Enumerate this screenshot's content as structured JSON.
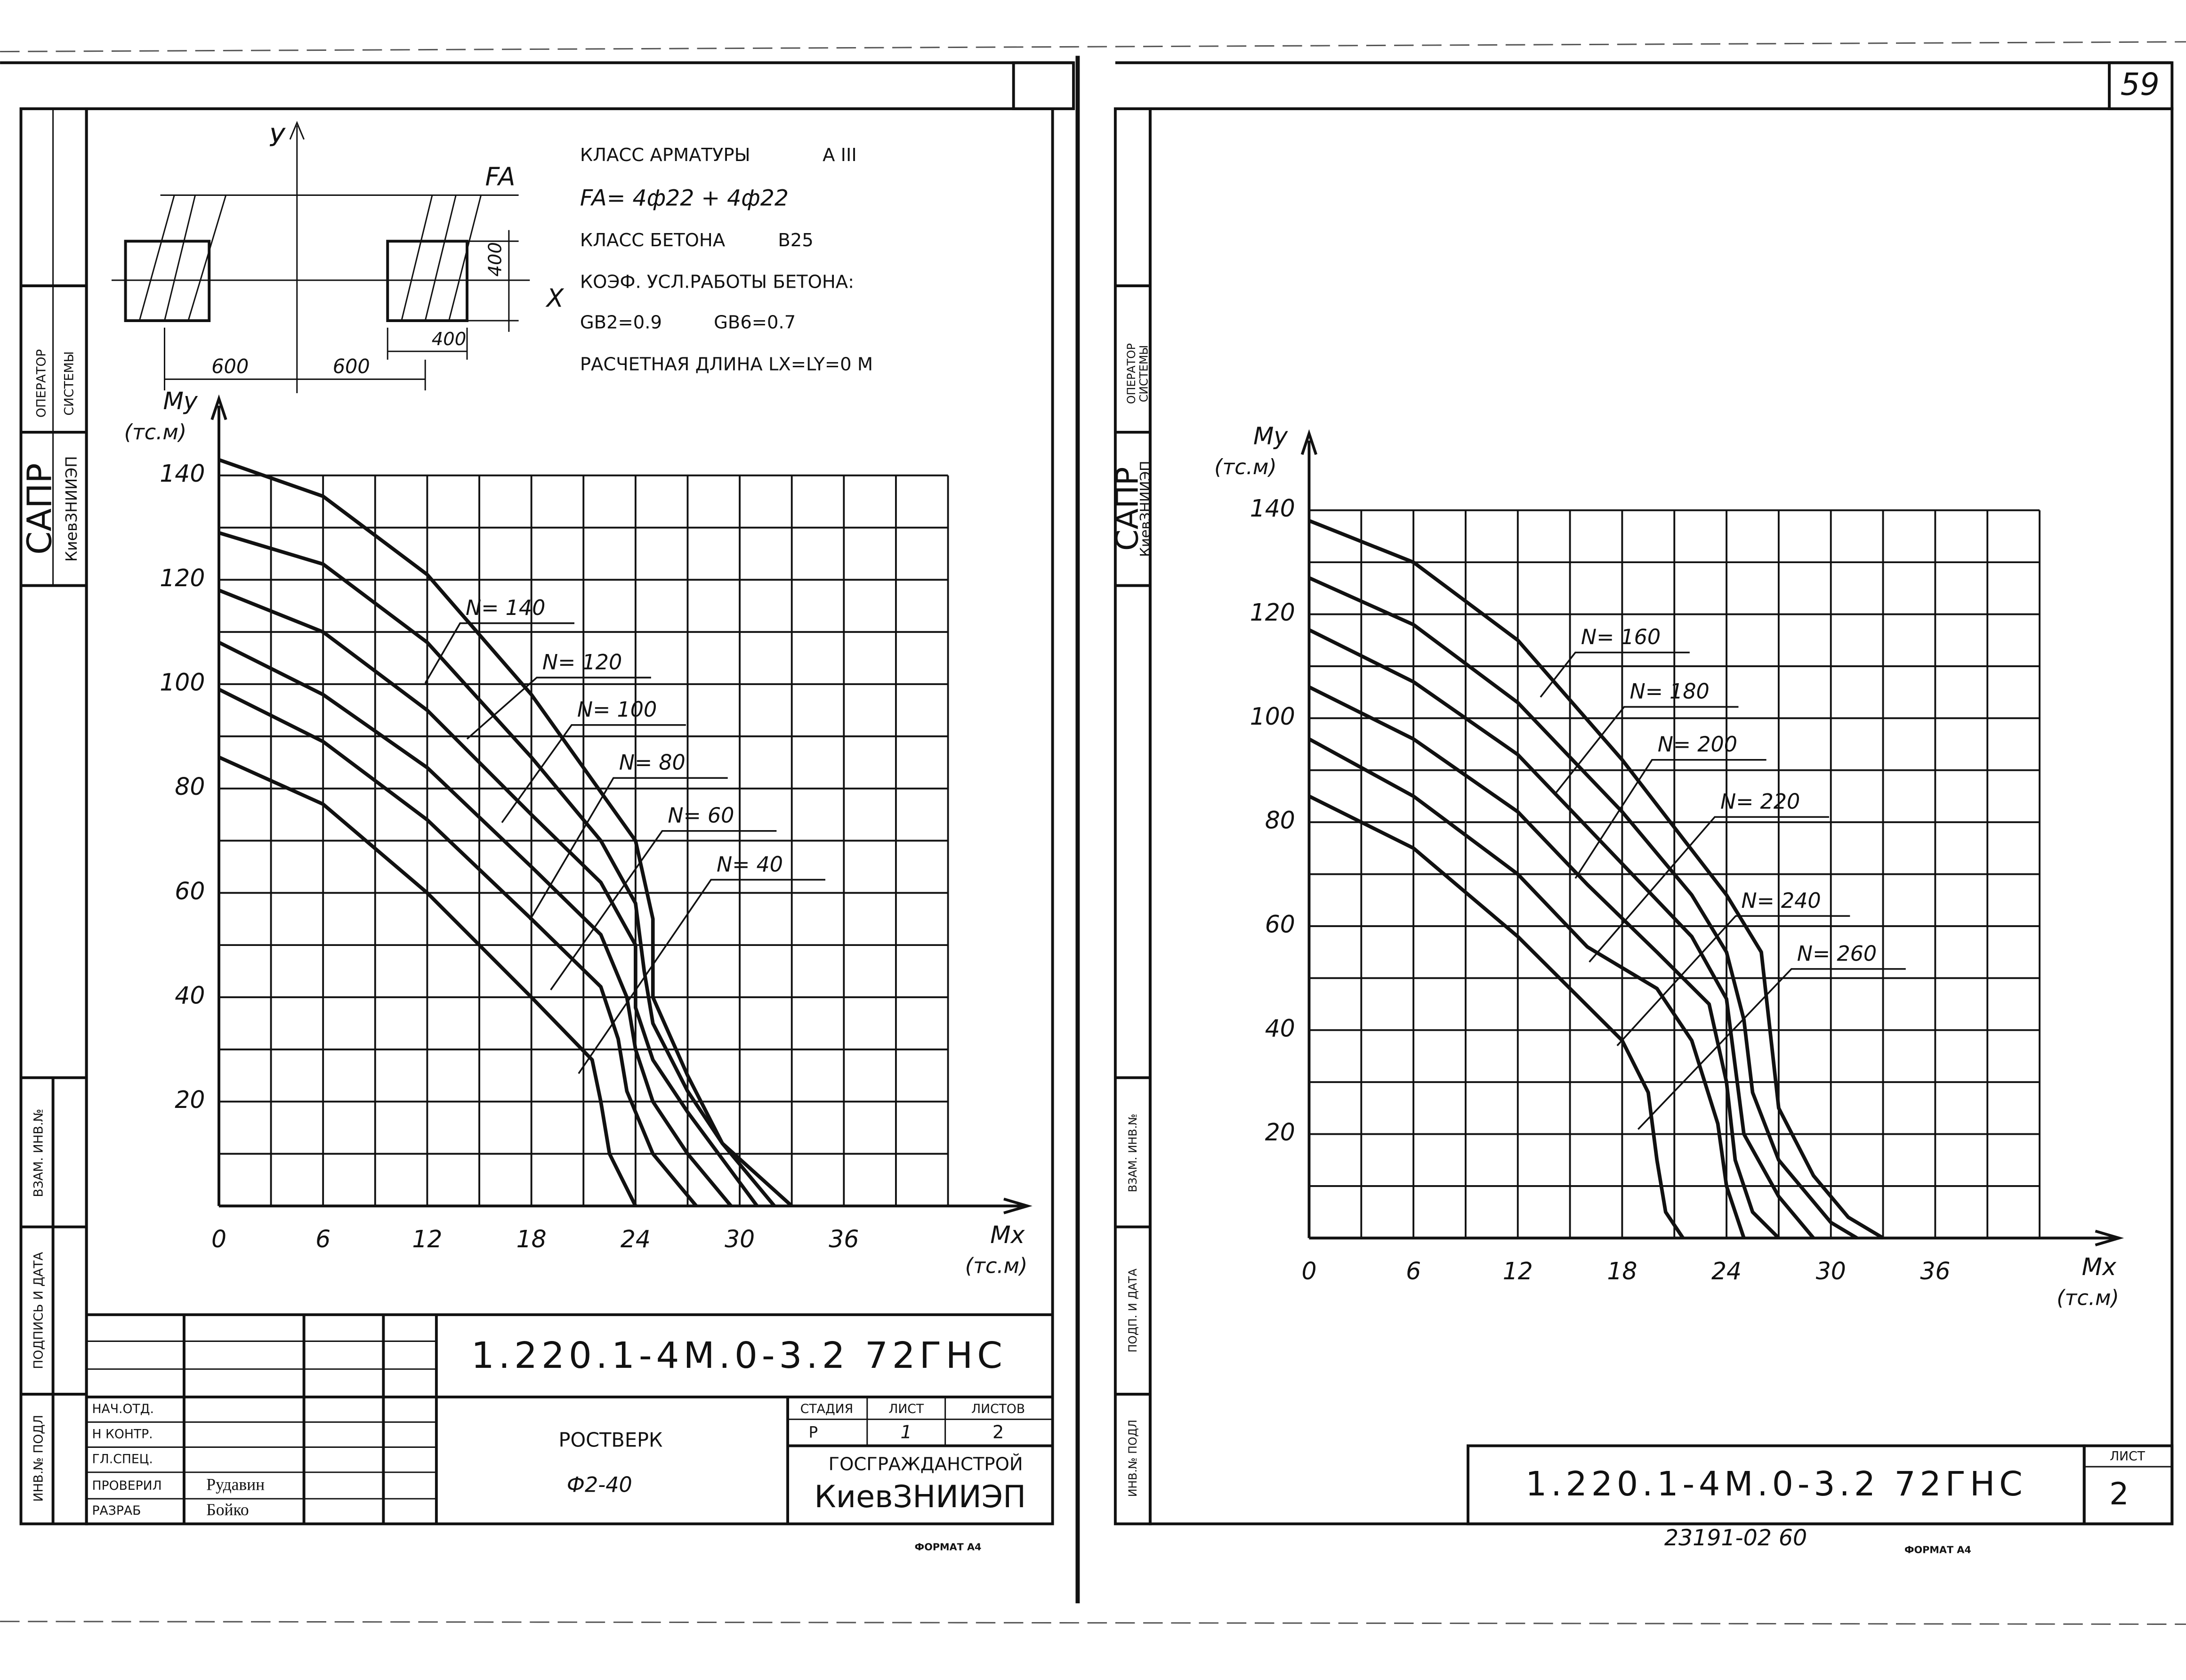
{
  "chart_data": [
    {
      "type": "line",
      "xlabel": [
        "Mx",
        "(тс.м)"
      ],
      "ylabel": [
        "My",
        "(тс.м)"
      ],
      "xlim": [
        0,
        42
      ],
      "ylim": [
        0,
        140
      ],
      "xticks": [
        0,
        6,
        12,
        18,
        24,
        30,
        36
      ],
      "yticks": [
        20,
        40,
        60,
        80,
        100,
        120,
        140
      ],
      "xgrid": [
        0,
        3,
        6,
        9,
        12,
        15,
        18,
        21,
        24,
        27,
        30,
        33,
        36,
        39,
        42
      ],
      "ygrid": [
        0,
        10,
        20,
        30,
        40,
        50,
        60,
        70,
        80,
        90,
        100,
        110,
        120,
        130,
        140
      ],
      "grid": true,
      "series": [
        {
          "name": "N= 140",
          "color": "#111111",
          "x": [
            0,
            6,
            12,
            18,
            24,
            25,
            25,
            27,
            29,
            32,
            33
          ],
          "values": [
            143,
            136,
            121,
            98,
            70,
            55,
            40,
            25,
            12,
            3,
            0
          ]
        },
        {
          "name": "N= 120",
          "color": "#111111",
          "x": [
            0,
            6,
            12,
            18,
            22,
            24,
            24.5,
            25,
            27,
            29,
            31,
            32
          ],
          "values": [
            129,
            123,
            108,
            86,
            70,
            58,
            45,
            35,
            22,
            12,
            4,
            0
          ]
        },
        {
          "name": "N= 100",
          "color": "#111111",
          "x": [
            0,
            6,
            12,
            18,
            22,
            24,
            24,
            25,
            27,
            29,
            31
          ],
          "values": [
            118,
            110,
            95,
            75,
            62,
            50,
            38,
            28,
            18,
            9,
            0
          ]
        },
        {
          "name": "N= 80",
          "color": "#111111",
          "x": [
            0,
            6,
            12,
            18,
            22,
            23.5,
            24,
            25,
            27,
            29.5
          ],
          "values": [
            108,
            98,
            84,
            65,
            52,
            40,
            30,
            20,
            10,
            0
          ]
        },
        {
          "name": "N= 60",
          "color": "#111111",
          "x": [
            0,
            6,
            12,
            18,
            22,
            23,
            23.5,
            25,
            27.5
          ],
          "values": [
            99,
            89,
            74,
            55,
            42,
            32,
            22,
            10,
            0
          ]
        },
        {
          "name": "N= 40",
          "color": "#111111",
          "x": [
            0,
            6,
            12,
            18,
            21.5,
            22,
            22.5,
            24
          ],
          "values": [
            86,
            77,
            60,
            40,
            28,
            20,
            10,
            0
          ]
        }
      ]
    },
    {
      "type": "line",
      "xlabel": [
        "Mx",
        "(тс.м)"
      ],
      "ylabel": [
        "My",
        "(тс.м)"
      ],
      "xlim": [
        0,
        42
      ],
      "ylim": [
        0,
        140
      ],
      "xticks": [
        0,
        6,
        12,
        18,
        24,
        30,
        36
      ],
      "yticks": [
        20,
        40,
        60,
        80,
        100,
        120,
        140
      ],
      "xgrid": [
        0,
        3,
        6,
        9,
        12,
        15,
        18,
        21,
        24,
        27,
        30,
        33,
        36,
        39,
        42
      ],
      "ygrid": [
        0,
        10,
        20,
        30,
        40,
        50,
        60,
        70,
        80,
        90,
        100,
        110,
        120,
        130,
        140
      ],
      "grid": true,
      "series": [
        {
          "name": "N= 160",
          "color": "#111111",
          "x": [
            0,
            6,
            12,
            18,
            24,
            26,
            26.5,
            27,
            29,
            31,
            33
          ],
          "values": [
            138,
            130,
            115,
            92,
            66,
            55,
            40,
            25,
            12,
            4,
            0
          ]
        },
        {
          "name": "N= 180",
          "color": "#111111",
          "x": [
            0,
            6,
            12,
            18,
            22,
            24,
            25,
            25.5,
            27,
            30,
            31.5
          ],
          "values": [
            127,
            118,
            103,
            82,
            66,
            55,
            42,
            28,
            15,
            3,
            0
          ]
        },
        {
          "name": "N= 200",
          "color": "#111111",
          "x": [
            0,
            6,
            12,
            18,
            22,
            24,
            24.5,
            25,
            27,
            29
          ],
          "values": [
            117,
            107,
            93,
            72,
            58,
            46,
            33,
            20,
            8,
            0
          ]
        },
        {
          "name": "N= 220",
          "color": "#111111",
          "x": [
            0,
            6,
            12,
            16,
            20,
            23,
            24,
            24.5,
            25.5,
            27
          ],
          "values": [
            106,
            96,
            82,
            68,
            55,
            45,
            30,
            15,
            5,
            0
          ]
        },
        {
          "name": "N= 240",
          "color": "#111111",
          "x": [
            0,
            6,
            12,
            16,
            20,
            22,
            23.5,
            24,
            25
          ],
          "values": [
            96,
            85,
            70,
            56,
            48,
            38,
            22,
            10,
            0
          ]
        },
        {
          "name": "N= 260",
          "color": "#111111",
          "x": [
            0,
            6,
            12,
            18,
            19.5,
            20,
            20.5,
            21.5
          ],
          "values": [
            85,
            75,
            58,
            38,
            28,
            15,
            5,
            0
          ]
        }
      ]
    }
  ],
  "left_sheet": {
    "reinforcement_class_label": "КЛАСС АРМАТУРЫ",
    "reinforcement_class": "А III",
    "fa": "FA= 4ф22 + 4ф22",
    "concrete_class_label": "КЛАСС БЕТОНА",
    "concrete_class": "B25",
    "coef_label": "КОЭФ. УСЛ.РАБОТЫ БЕТОНА:",
    "gb2": "GB2=0.9",
    "gb6": "GB6=0.7",
    "length": "РАСЧЕТНАЯ ДЛИНА LX=LY=0 М",
    "section": {
      "y": "У",
      "x": "X",
      "fa": "FA",
      "dims": [
        "400",
        "400",
        "600",
        "600"
      ]
    },
    "stamp": {
      "operator": "ОПЕРАТОР",
      "system": "СИСТЕМЫ",
      "sapr": "САПР",
      "institute": "КиевЗНИИЭП",
      "ref": "ВЗАМ. ИНВ.№",
      "sign": "ПОДПИСЬ И ДАТА",
      "inv": "ИНВ.№ ПОДЛ"
    },
    "title_block": {
      "code": "1.220.1-4М.0-3.2 72ГНС",
      "roles": [
        "НАЧ.ОТД.",
        "Н КОНТР.",
        "ГЛ.СПЕЦ.",
        "ПРОВЕРИЛ",
        "РАЗРАБ"
      ],
      "names": [
        "Рудавин",
        "Бойко"
      ],
      "name": "РОСТВЕРК",
      "mark": "Ф2-40",
      "headers": [
        "СТАДИЯ",
        "ЛИСТ",
        "ЛИСТОВ"
      ],
      "values": [
        "Р",
        "1",
        "2"
      ],
      "org": "ГОСГРАЖДАНСТРОЙ",
      "org2": "КиевЗНИИЭП"
    },
    "format": "ФОРМАТ А4"
  },
  "right_sheet": {
    "page": "59",
    "stamp": {
      "operator": "ОПЕРАТОР",
      "system": "СИСТЕМЫ",
      "sapr": "САПР",
      "institute": "КиевЗНИИЭП",
      "ref": "ВЗАМ. ИНВ.№",
      "sign": "ПОДП. И ДАТА",
      "inv": "ИНВ.№ ПОДЛ"
    },
    "code": "1.220.1-4М.0-3.2 72ГНС",
    "sheet_label": "ЛИСТ",
    "sheet": "2",
    "archive": "23191-02  60",
    "format": "ФОРМАТ А4"
  }
}
